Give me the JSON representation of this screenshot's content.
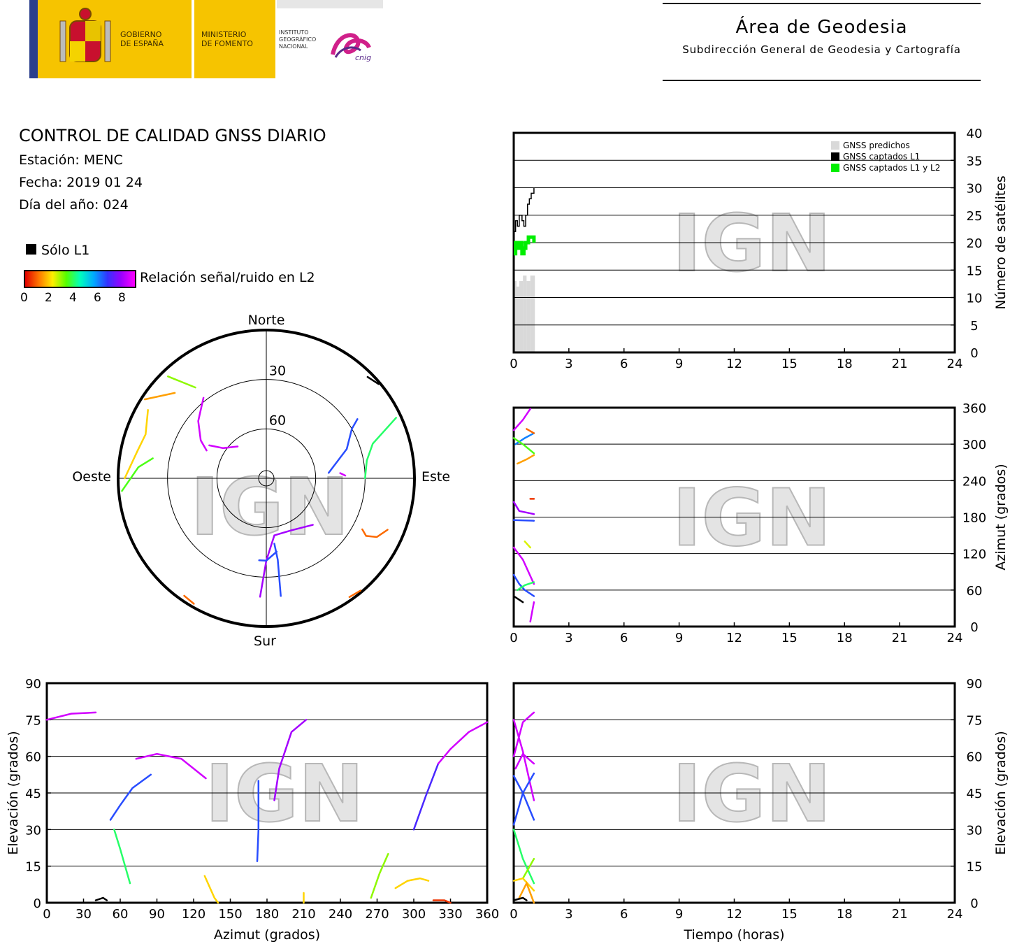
{
  "header": {
    "gov_line1": "GOBIERNO",
    "gov_line2": "DE ESPAÑA",
    "min_line1": "MINISTERIO",
    "min_line2": "DE FOMENTO",
    "ign_line1": "INSTITUTO",
    "ign_line2": "GEOGRÁFICO",
    "ign_line3": "NACIONAL",
    "cnig": "cnig",
    "area_title": "Área de Geodesia",
    "area_subtitle": "Subdirección General de Geodesia y Cartografía"
  },
  "info": {
    "title": "CONTROL DE CALIDAD GNSS DIARIO",
    "station": "Estación: MENC",
    "date": "Fecha: 2019 01 24",
    "doy": "Día del año: 024",
    "l1_only": "Sólo L1",
    "snr_label": "Relación señal/ruido en L2",
    "snr_ticks": [
      "0",
      "2",
      "4",
      "6",
      "8"
    ]
  },
  "colors": {
    "predicted": "#d9d9d9",
    "l1": "#000000",
    "l1l2": "#00ee00",
    "watermark": "#cfcfcf"
  },
  "watermark": "IGN",
  "chart_data": [
    {
      "id": "skyplot",
      "type": "polar-skyplot",
      "directions": {
        "north": "Norte",
        "south": "Sur",
        "east": "Este",
        "west": "Oeste"
      },
      "ring_labels": [
        "30",
        "60"
      ],
      "tracks": [
        {
          "pts": [
            [
              303,
              2
            ],
            [
              313,
              14
            ]
          ],
          "snr": 1.5
        },
        {
          "pts": [
            [
              316,
              4
            ],
            [
              322,
              20
            ]
          ],
          "snr": 3
        },
        {
          "pts": [
            [
              270,
              4
            ],
            [
              282,
              10
            ],
            [
              290,
              12
            ],
            [
              300,
              7
            ]
          ],
          "snr": 2
        },
        {
          "pts": [
            [
              322,
              28
            ],
            [
              310,
              36
            ],
            [
              300,
              44
            ],
            [
              295,
              50
            ]
          ],
          "snr": 8.5
        },
        {
          "pts": [
            [
              300,
              50
            ],
            [
              305,
              58
            ],
            [
              318,
              64
            ]
          ],
          "snr": 8.5
        },
        {
          "pts": [
            [
              45,
              3
            ],
            [
              50,
              1
            ]
          ],
          "snr": 0
        },
        {
          "pts": [
            [
              65,
              3
            ],
            [
              72,
              22
            ],
            [
              80,
              28
            ],
            [
              90,
              30
            ]
          ],
          "snr": 4
        },
        {
          "pts": [
            [
              57,
              24
            ],
            [
              60,
              30
            ],
            [
              70,
              38
            ],
            [
              85,
              52
            ]
          ],
          "snr": 6.5
        },
        {
          "pts": [
            [
              135,
              50
            ],
            [
              155,
              55
            ],
            [
              172,
              55
            ],
            [
              180,
              40
            ],
            [
              183,
              18
            ]
          ],
          "snr": 8
        },
        {
          "pts": [
            [
              185,
              40
            ],
            [
              180,
              40
            ],
            [
              172,
              45
            ]
          ],
          "snr": 6.5
        },
        {
          "pts": [
            [
              173,
              18
            ],
            [
              172,
              40
            ],
            [
              173,
              50
            ]
          ],
          "snr": 6.5
        },
        {
          "pts": [
            [
              86,
              45
            ],
            [
              88,
              42
            ]
          ],
          "snr": 8.5
        },
        {
          "pts": [
            [
              140,
              1
            ],
            [
              145,
              2
            ]
          ],
          "snr": 1
        },
        {
          "pts": [
            [
              210,
              2
            ],
            [
              215,
              3
            ]
          ],
          "snr": 1
        },
        {
          "pts": [
            [
              265,
              2
            ],
            [
              275,
              12
            ],
            [
              280,
              20
            ]
          ],
          "snr": 3.5
        },
        {
          "pts": [
            [
              113,
              10
            ],
            [
              118,
              14
            ],
            [
              120,
              20
            ],
            [
              118,
              24
            ]
          ],
          "snr": 1
        }
      ]
    },
    {
      "id": "count",
      "type": "bar+step",
      "xlim": [
        0,
        24
      ],
      "ylim": [
        0,
        40
      ],
      "xticks": [
        "0",
        "3",
        "6",
        "9",
        "12",
        "15",
        "18",
        "21",
        "24"
      ],
      "yticks": [
        "0",
        "5",
        "10",
        "15",
        "20",
        "25",
        "30",
        "35",
        "40"
      ],
      "ylabel": "Número de satélites",
      "legend": [
        "GNSS predichos",
        "GNSS captados L1",
        "GNSS captados L1 y L2"
      ],
      "predicted": [
        [
          0,
          14
        ],
        [
          0.05,
          13
        ],
        [
          0.15,
          12
        ],
        [
          0.3,
          13
        ],
        [
          0.5,
          14
        ],
        [
          0.7,
          13
        ],
        [
          0.9,
          14
        ],
        [
          1.15,
          0
        ]
      ],
      "l1": [
        [
          0,
          22
        ],
        [
          0.1,
          24
        ],
        [
          0.2,
          23
        ],
        [
          0.3,
          25
        ],
        [
          0.45,
          24
        ],
        [
          0.55,
          23
        ],
        [
          0.65,
          25
        ],
        [
          0.75,
          27
        ],
        [
          0.85,
          28
        ],
        [
          0.95,
          29
        ],
        [
          1.1,
          30
        ]
      ],
      "l1l2": [
        [
          0,
          18
        ],
        [
          0.1,
          20
        ],
        [
          0.25,
          19
        ],
        [
          0.35,
          20
        ],
        [
          0.45,
          18
        ],
        [
          0.55,
          19
        ],
        [
          0.65,
          20
        ],
        [
          0.8,
          21
        ],
        [
          1.1,
          20
        ]
      ]
    },
    {
      "id": "azimuth",
      "type": "line",
      "xlim": [
        0,
        24
      ],
      "ylim": [
        0,
        360
      ],
      "xticks": [
        "0",
        "3",
        "6",
        "9",
        "12",
        "15",
        "18",
        "21",
        "24"
      ],
      "yticks": [
        "0",
        "60",
        "120",
        "180",
        "240",
        "300",
        "360"
      ],
      "ylabel": "Azimut (grados)",
      "tracks": [
        {
          "pts": [
            [
              0,
              323
            ],
            [
              0.5,
              340
            ],
            [
              0.9,
              358
            ]
          ],
          "snr": 8.5
        },
        {
          "pts": [
            [
              0.1,
              300
            ],
            [
              0.6,
              310
            ],
            [
              1.1,
              318
            ]
          ],
          "snr": 6
        },
        {
          "pts": [
            [
              0.7,
              325
            ],
            [
              1.1,
              318
            ]
          ],
          "snr": 1
        },
        {
          "pts": [
            [
              0,
              310
            ],
            [
              0.5,
              300
            ],
            [
              1.1,
              285
            ]
          ],
          "snr": 3.5
        },
        {
          "pts": [
            [
              0.2,
              268
            ],
            [
              0.7,
              275
            ],
            [
              1.1,
              282
            ]
          ],
          "snr": 1.5
        },
        {
          "pts": [
            [
              0,
              205
            ],
            [
              0.3,
              190
            ],
            [
              1.1,
              185
            ]
          ],
          "snr": 8
        },
        {
          "pts": [
            [
              0.9,
              210
            ],
            [
              1.1,
              210
            ]
          ],
          "snr": 0.5
        },
        {
          "pts": [
            [
              0,
              175
            ],
            [
              1.1,
              174
            ]
          ],
          "snr": 6.5
        },
        {
          "pts": [
            [
              0.6,
              140
            ],
            [
              0.9,
              130
            ]
          ],
          "snr": 2.5
        },
        {
          "pts": [
            [
              0,
              130
            ],
            [
              0.5,
              110
            ],
            [
              1.1,
              70
            ]
          ],
          "snr": 8.5
        },
        {
          "pts": [
            [
              0,
              85
            ],
            [
              0.3,
              70
            ],
            [
              0.6,
              60
            ],
            [
              1.1,
              50
            ]
          ],
          "snr": 6.5
        },
        {
          "pts": [
            [
              0.2,
              60
            ],
            [
              0.6,
              68
            ],
            [
              1.1,
              73
            ]
          ],
          "snr": 4
        },
        {
          "pts": [
            [
              0,
              50
            ],
            [
              0.5,
              40
            ]
          ],
          "snr": 0
        },
        {
          "pts": [
            [
              0.9,
              8
            ],
            [
              1.1,
              40
            ]
          ],
          "snr": 8.5
        }
      ]
    },
    {
      "id": "elev_vs_az",
      "type": "line",
      "xlim": [
        0,
        360
      ],
      "ylim": [
        0,
        90
      ],
      "xticks": [
        "0",
        "30",
        "60",
        "90",
        "120",
        "150",
        "180",
        "210",
        "240",
        "270",
        "300",
        "330",
        "360"
      ],
      "yticks": [
        "0",
        "15",
        "30",
        "45",
        "60",
        "75",
        "90"
      ],
      "xlabel": "Azimut (grados)",
      "ylabel": "Elevación (grados)",
      "tracks": [
        {
          "pts": [
            [
              0,
              75
            ],
            [
              20,
              77.5
            ],
            [
              40,
              78
            ]
          ],
          "snr": 8.5
        },
        {
          "pts": [
            [
              52,
              34
            ],
            [
              60,
              40
            ],
            [
              70,
              47
            ],
            [
              85,
              52.5
            ]
          ],
          "snr": 6.5
        },
        {
          "pts": [
            [
              55,
              30
            ],
            [
              60,
              22
            ],
            [
              68,
              8
            ]
          ],
          "snr": 4
        },
        {
          "pts": [
            [
              73,
              59
            ],
            [
              90,
              61
            ],
            [
              110,
              59
            ],
            [
              130,
              51
            ]
          ],
          "snr": 8.5
        },
        {
          "pts": [
            [
              129,
              11
            ],
            [
              137,
              2
            ],
            [
              140,
              0
            ]
          ],
          "snr": 2
        },
        {
          "pts": [
            [
              173,
              50
            ],
            [
              173,
              30
            ],
            [
              172,
              17
            ]
          ],
          "snr": 6.5
        },
        {
          "pts": [
            [
              186,
              42
            ],
            [
              190,
              55
            ],
            [
              200,
              70
            ],
            [
              212,
              75
            ]
          ],
          "snr": 8
        },
        {
          "pts": [
            [
              210,
              0
            ],
            [
              210,
              4
            ]
          ],
          "snr": 2
        },
        {
          "pts": [
            [
              265,
              2
            ],
            [
              272,
              12
            ],
            [
              279,
              20
            ]
          ],
          "snr": 3
        },
        {
          "pts": [
            [
              285,
              6
            ],
            [
              295,
              9
            ],
            [
              305,
              10
            ],
            [
              312,
              9
            ]
          ],
          "snr": 2
        },
        {
          "pts": [
            [
              300,
              30
            ],
            [
              310,
              44
            ],
            [
              320,
              57
            ]
          ],
          "snr": 7
        },
        {
          "pts": [
            [
              320,
              57
            ],
            [
              330,
              63
            ],
            [
              345,
              70
            ],
            [
              360,
              74
            ]
          ],
          "snr": 8.5
        },
        {
          "pts": [
            [
              316,
              1
            ],
            [
              325,
              1
            ],
            [
              330,
              0
            ]
          ],
          "snr": 0.5
        },
        {
          "pts": [
            [
              40,
              1
            ],
            [
              46,
              2
            ],
            [
              49,
              1
            ]
          ],
          "snr": 0
        }
      ]
    },
    {
      "id": "elev_vs_time",
      "type": "line",
      "xlim": [
        0,
        24
      ],
      "ylim": [
        0,
        90
      ],
      "xticks": [
        "0",
        "3",
        "6",
        "9",
        "12",
        "15",
        "18",
        "21",
        "24"
      ],
      "yticks": [
        "0",
        "15",
        "30",
        "45",
        "60",
        "75",
        "90"
      ],
      "xlabel": "Tiempo (horas)",
      "ylabel": "Elevación (grados)",
      "tracks": [
        {
          "pts": [
            [
              0,
              75
            ],
            [
              0.5,
              62
            ],
            [
              1.1,
              42
            ]
          ],
          "snr": 8.5
        },
        {
          "pts": [
            [
              0,
              60
            ],
            [
              0.5,
              74
            ],
            [
              1.1,
              78
            ]
          ],
          "snr": 8.5
        },
        {
          "pts": [
            [
              0.1,
              55
            ],
            [
              0.5,
              61
            ],
            [
              1.1,
              57
            ]
          ],
          "snr": 8.5
        },
        {
          "pts": [
            [
              0,
              32
            ],
            [
              0.5,
              45
            ],
            [
              1.1,
              53
            ]
          ],
          "snr": 6.5
        },
        {
          "pts": [
            [
              0,
              52
            ],
            [
              0.5,
              45
            ],
            [
              1.1,
              34
            ]
          ],
          "snr": 6.5
        },
        {
          "pts": [
            [
              0,
              30
            ],
            [
              0.5,
              18
            ],
            [
              1.1,
              8
            ]
          ],
          "snr": 4
        },
        {
          "pts": [
            [
              0.5,
              10
            ],
            [
              1.1,
              18
            ]
          ],
          "snr": 3
        },
        {
          "pts": [
            [
              0,
              9
            ],
            [
              0.5,
              10
            ],
            [
              1.1,
              5
            ]
          ],
          "snr": 2
        },
        {
          "pts": [
            [
              0.3,
              2
            ],
            [
              0.7,
              8
            ],
            [
              1.1,
              0
            ]
          ],
          "snr": 1.5
        },
        {
          "pts": [
            [
              0,
              1
            ],
            [
              0.5,
              2
            ],
            [
              0.7,
              1
            ]
          ],
          "snr": 0
        }
      ]
    }
  ]
}
